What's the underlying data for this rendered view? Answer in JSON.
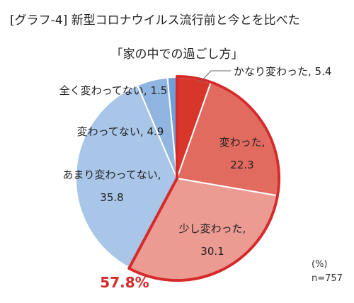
{
  "title_line1": "[グラフ-4] 新型コロナウイルス流行前と今とを比べた",
  "title_line2": "「家の中での過ごし方」",
  "unit_label": "(%)",
  "sample_label": "n=757",
  "changed_total_label": "57.8%",
  "colors": {
    "changed_total": "#d62a2a",
    "slice_border": "#ffffff",
    "highlight_border": "#d62a2a"
  },
  "chart_data": {
    "type": "pie",
    "start": "12 o'clock, clockwise",
    "slices": [
      {
        "label": "かなり変わった",
        "value": 5.4,
        "label_text": "かなり変わった, 5.4",
        "color": "#d9362b"
      },
      {
        "label": "変わった",
        "value": 22.3,
        "label_text": "変わった,",
        "value_text": "22.3",
        "color": "#e26b60"
      },
      {
        "label": "少し変わった",
        "value": 30.1,
        "label_text": "少し変わった,",
        "value_text": "30.1",
        "color": "#ec9b93"
      },
      {
        "label": "あまり変わってない",
        "value": 35.8,
        "label_text": "あまり変わってない,",
        "value_text": "35.8",
        "color": "#a9c6e8"
      },
      {
        "label": "変わってない",
        "value": 4.9,
        "label_text": "変わってない, 4.9",
        "color": "#8fb5e0"
      },
      {
        "label": "全く変わってない",
        "value": 1.5,
        "label_text": "全く変わってない, 1.5",
        "color": "#6f9fd8"
      }
    ],
    "highlight_group": [
      "かなり変わった",
      "変わった",
      "少し変わった"
    ],
    "highlight_total": 57.8
  }
}
